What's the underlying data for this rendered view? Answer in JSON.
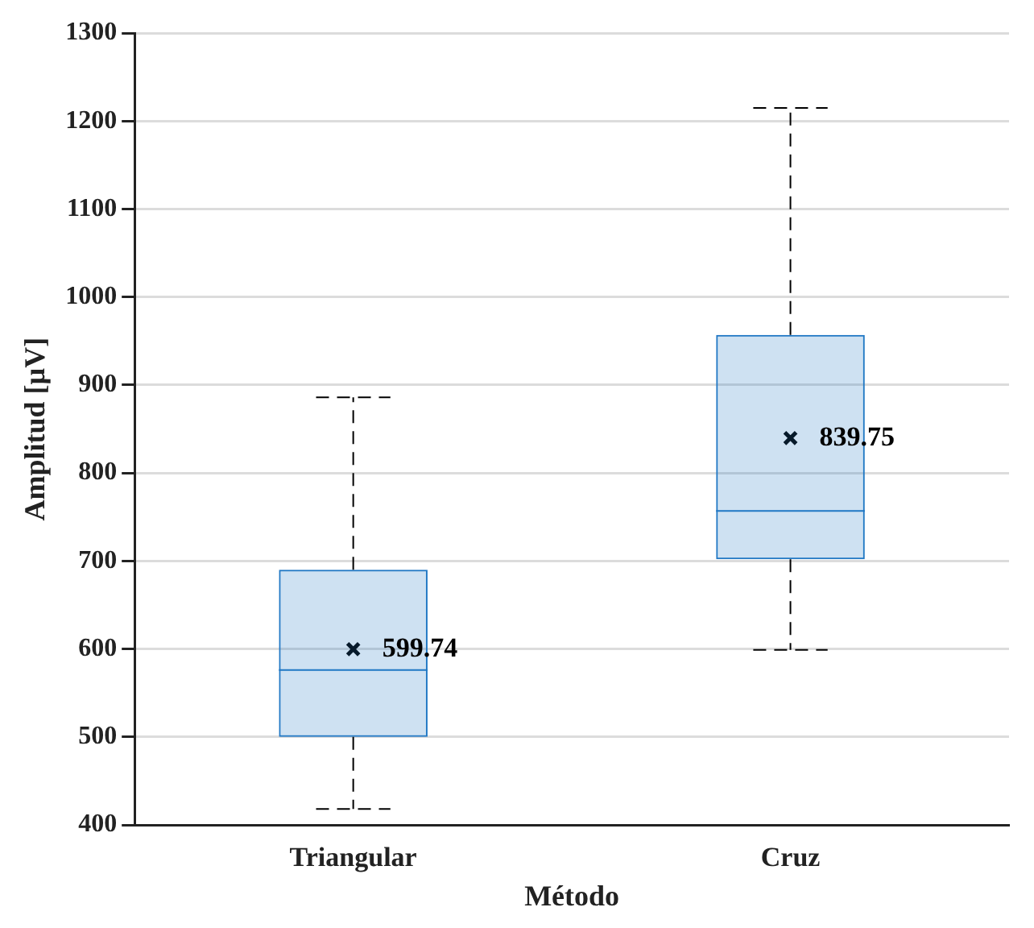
{
  "chart_data": {
    "type": "box",
    "xlabel": "Método",
    "ylabel": "Amplitud [µV]",
    "categories": [
      "Triangular",
      "Cruz"
    ],
    "boxes": [
      {
        "low": 418,
        "q1": 500,
        "median": 576,
        "q3": 690,
        "high": 886,
        "mean": 599.74
      },
      {
        "low": 599,
        "q1": 702,
        "median": 757,
        "q3": 957,
        "high": 1215,
        "mean": 839.75
      }
    ],
    "color": "#1f77c4",
    "ylim": [
      400,
      1300
    ],
    "yticks": [
      400,
      500,
      600,
      700,
      800,
      900,
      1000,
      1100,
      1200,
      1300
    ],
    "grid": "y",
    "annotations": [
      "599.74",
      "839.75"
    ]
  }
}
